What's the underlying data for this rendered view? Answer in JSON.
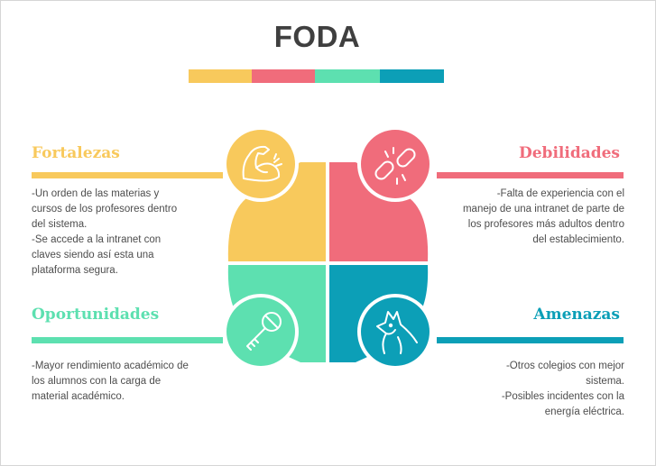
{
  "title": "FODA",
  "colors": {
    "fortalezas": "#f8c95c",
    "debilidades": "#f06c7b",
    "oportunidades": "#5de0b0",
    "amenazas": "#0c9fb7",
    "title": "#3f3f3f",
    "text": "#4d4d4d"
  },
  "quadrants": {
    "fortalezas": {
      "heading": "Fortalezas",
      "icon": "flexed-arm-icon",
      "lines": [
        "-Un orden de las materias y",
        "cursos de los profesores dentro",
        "del sistema.",
        "-Se accede a la intranet con",
        "claves siendo así esta una",
        "plataforma segura."
      ]
    },
    "debilidades": {
      "heading": "Debilidades",
      "icon": "broken-chain-icon",
      "lines": [
        "-Falta de experiencia con el",
        "manejo de una intranet de parte de",
        "los profesores más adultos dentro",
        "del establecimiento."
      ]
    },
    "oportunidades": {
      "heading": "Oportunidades",
      "icon": "key-icon",
      "lines": [
        "-Mayor rendimiento académico de",
        "los alumnos con la carga de",
        "material académico."
      ]
    },
    "amenazas": {
      "heading": "Amenazas",
      "icon": "dog-icon",
      "lines": [
        "-Otros colegios con mejor",
        "sistema.",
        "-Posibles incidentes con la",
        "energía eléctrica."
      ]
    }
  }
}
